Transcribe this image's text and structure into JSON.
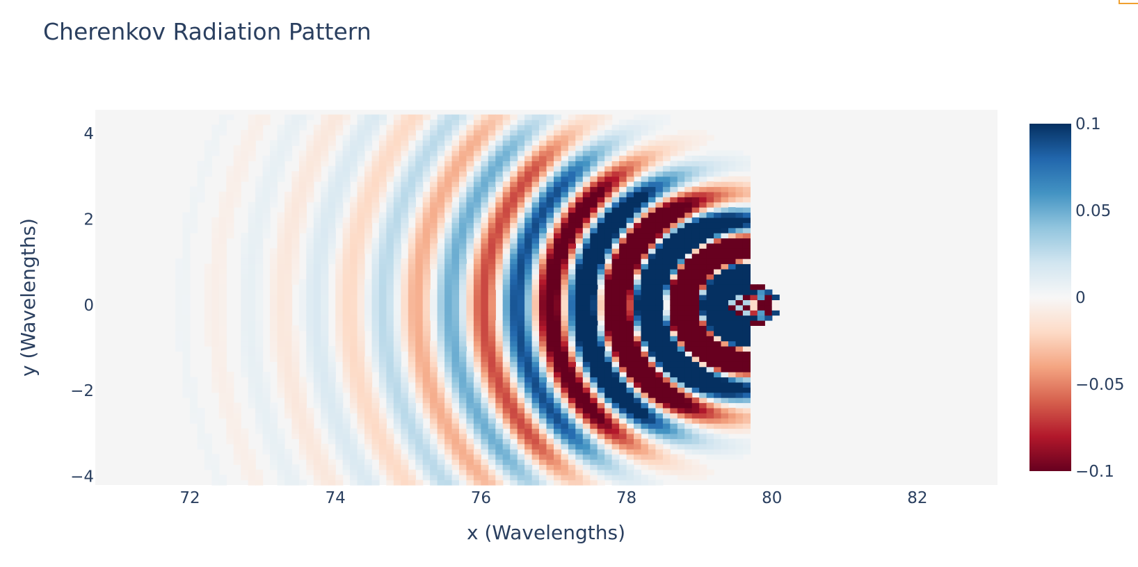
{
  "chart_data": {
    "type": "heatmap",
    "title": "Cherenkov Radiation Pattern",
    "xlabel": "x (Wavelengths)",
    "ylabel": "y (Wavelengths)",
    "xlim": [
      70.7,
      83.1
    ],
    "ylim": [
      -4.2,
      4.55
    ],
    "x_ticks": [
      72,
      74,
      76,
      78,
      80,
      82
    ],
    "x_tick_labels": [
      "72",
      "74",
      "76",
      "78",
      "80",
      "82"
    ],
    "y_ticks": [
      -4,
      -2,
      0,
      2,
      4
    ],
    "y_tick_labels": [
      "−4",
      "−2",
      "0",
      "2",
      "4"
    ],
    "colorscale": "RdBu",
    "colorscale_stops": [
      "#67001f",
      "#b2182b",
      "#d6604d",
      "#f4a582",
      "#fddbc7",
      "#f7f7f7",
      "#d1e5f0",
      "#92c5de",
      "#4393c3",
      "#2166ac",
      "#053061"
    ],
    "zmin": -0.1,
    "zmax": 0.1,
    "colorbar_ticks": [
      0.1,
      0.05,
      0,
      -0.05,
      -0.1
    ],
    "colorbar_tick_labels": [
      "0.1",
      "0.05",
      "0",
      "−0.05",
      "−0.1"
    ],
    "source_x": 79.7,
    "source_y": 0,
    "plot_background": "#f5f5f5"
  }
}
